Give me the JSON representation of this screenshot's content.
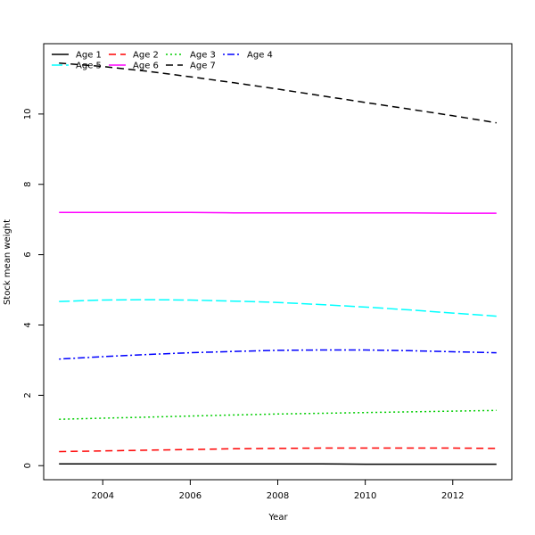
{
  "chart_data": {
    "type": "line",
    "title": "",
    "xlabel": "Year",
    "ylabel": "Stock mean weight",
    "xlim": [
      2002.65,
      2013.35
    ],
    "ylim": [
      -0.4,
      12.0
    ],
    "x_ticks": [
      2004,
      2006,
      2008,
      2010,
      2012
    ],
    "y_ticks": [
      0,
      2,
      4,
      6,
      8,
      10
    ],
    "legend": "top-left",
    "x": [
      2003,
      2004,
      2005,
      2006,
      2007,
      2008,
      2009,
      2010,
      2011,
      2012,
      2013
    ],
    "series": [
      {
        "name": "Age 1",
        "color": "#000000",
        "dash": "solid",
        "values": [
          0.05,
          0.05,
          0.05,
          0.05,
          0.05,
          0.05,
          0.05,
          0.04,
          0.04,
          0.04,
          0.04
        ]
      },
      {
        "name": "Age 2",
        "color": "#ff0000",
        "dash": "dashed",
        "values": [
          0.4,
          0.42,
          0.44,
          0.46,
          0.48,
          0.49,
          0.5,
          0.5,
          0.5,
          0.5,
          0.49
        ]
      },
      {
        "name": "Age 3",
        "color": "#00cd00",
        "dash": "dotted",
        "values": [
          1.32,
          1.35,
          1.38,
          1.41,
          1.44,
          1.47,
          1.49,
          1.51,
          1.53,
          1.55,
          1.57
        ]
      },
      {
        "name": "Age 4",
        "color": "#0000ff",
        "dash": "dotdash",
        "values": [
          3.03,
          3.1,
          3.16,
          3.21,
          3.25,
          3.28,
          3.29,
          3.29,
          3.27,
          3.24,
          3.21
        ]
      },
      {
        "name": "Age 5",
        "color": "#00ffff",
        "dash": "longdash",
        "values": [
          4.67,
          4.71,
          4.72,
          4.71,
          4.68,
          4.64,
          4.58,
          4.51,
          4.43,
          4.34,
          4.25
        ]
      },
      {
        "name": "Age 6",
        "color": "#ff00ff",
        "dash": "solid",
        "values": [
          7.2,
          7.2,
          7.2,
          7.2,
          7.19,
          7.19,
          7.19,
          7.19,
          7.19,
          7.18,
          7.18
        ]
      },
      {
        "name": "Age 7",
        "color": "#000000",
        "dash": "dashed",
        "values": [
          11.45,
          11.35,
          11.22,
          11.06,
          10.89,
          10.71,
          10.52,
          10.33,
          10.14,
          9.95,
          9.75
        ]
      }
    ]
  }
}
